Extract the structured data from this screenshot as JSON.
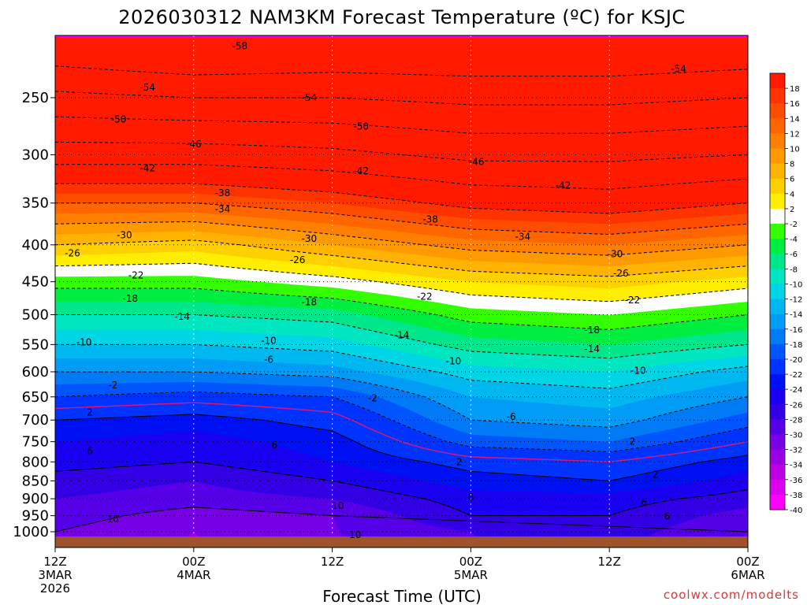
{
  "chart_data": {
    "type": "heatmap",
    "title": "2026030312 NAM3KM Forecast Temperature (ºC) for KSJC",
    "xlabel": "Forecast Time (UTC)",
    "ylabel": "",
    "credit": "coolwx.com/modelts",
    "x_ticks": [
      {
        "hours": 0,
        "lines": [
          "12Z",
          "3MAR",
          "2026"
        ]
      },
      {
        "hours": 12,
        "lines": [
          "00Z",
          "4MAR"
        ]
      },
      {
        "hours": 24,
        "lines": [
          "12Z"
        ]
      },
      {
        "hours": 36,
        "lines": [
          "00Z",
          "5MAR"
        ]
      },
      {
        "hours": 48,
        "lines": [
          "12Z"
        ]
      },
      {
        "hours": 60,
        "lines": [
          "00Z",
          "6MAR"
        ]
      }
    ],
    "xlim_hours": [
      0,
      60
    ],
    "y_pressure_ticks": [
      250,
      300,
      350,
      400,
      450,
      500,
      550,
      600,
      650,
      700,
      750,
      800,
      850,
      900,
      950,
      1000
    ],
    "ylim_hpa": [
      200,
      1020
    ],
    "colorbar": {
      "labels": [
        "18",
        "16",
        "14",
        "12",
        "10",
        "8",
        "6",
        "4",
        "2",
        "-2",
        "-4",
        "-6",
        "-8",
        "-10",
        "-12",
        "-14",
        "-16",
        "-18",
        "-20",
        "-22",
        "-24",
        "-26",
        "-28",
        "-30",
        "-32",
        "-34",
        "-36",
        "-38",
        "-40"
      ],
      "colors": [
        "#ff1a00",
        "#ff3300",
        "#ff4d00",
        "#ff6600",
        "#ff8000",
        "#ff9900",
        "#ffb300",
        "#ffd000",
        "#ffee00",
        "#ffffff",
        "#33ff00",
        "#00ee40",
        "#00e68a",
        "#00e6c0",
        "#00d5e6",
        "#00b8f0",
        "#009cf5",
        "#007af5",
        "#0055ff",
        "#0033ff",
        "#0010f5",
        "#1a00f0",
        "#3300e6",
        "#5500e6",
        "#7700e6",
        "#9900e6",
        "#bb00e6",
        "#dd00ee",
        "#ff00ff"
      ]
    },
    "profile_hours": [
      0,
      12,
      24,
      36,
      48,
      60
    ],
    "temperature_profiles_c": [
      {
        "hpa": 1000,
        "values": [
          10,
          12,
          10,
          8,
          7,
          10
        ]
      },
      {
        "hpa": 950,
        "values": [
          9,
          11,
          10,
          6,
          6,
          9
        ]
      },
      {
        "hpa": 900,
        "values": [
          8,
          9,
          8,
          5,
          5,
          7
        ]
      },
      {
        "hpa": 850,
        "values": [
          7,
          8,
          6,
          3,
          2,
          5
        ]
      },
      {
        "hpa": 800,
        "values": [
          5,
          6,
          4,
          1,
          0,
          3
        ]
      },
      {
        "hpa": 750,
        "values": [
          4,
          5,
          3,
          -3,
          -4,
          0
        ]
      },
      {
        "hpa": 700,
        "values": [
          2,
          3,
          1,
          -6,
          -7,
          -3
        ]
      },
      {
        "hpa": 650,
        "values": [
          -2,
          -1,
          -2,
          -8,
          -9,
          -6
        ]
      },
      {
        "hpa": 600,
        "values": [
          -6,
          -6,
          -7,
          -11,
          -12,
          -9
        ]
      },
      {
        "hpa": 550,
        "values": [
          -10,
          -10,
          -11,
          -15,
          -16,
          -14
        ]
      },
      {
        "hpa": 500,
        "values": [
          -14,
          -14,
          -15,
          -19,
          -20,
          -18
        ]
      },
      {
        "hpa": 450,
        "values": [
          -19,
          -19,
          -21,
          -24,
          -25,
          -23
        ]
      },
      {
        "hpa": 400,
        "values": [
          -26,
          -25,
          -28,
          -31,
          -32,
          -30
        ]
      },
      {
        "hpa": 350,
        "values": [
          -34,
          -34,
          -36,
          -39,
          -40,
          -38
        ]
      },
      {
        "hpa": 300,
        "values": [
          -44,
          -44,
          -45,
          -47,
          -47,
          -46
        ]
      },
      {
        "hpa": 250,
        "values": [
          -53,
          -54,
          -54,
          -55,
          -55,
          -54
        ]
      }
    ],
    "contour_labels": [
      {
        "text": "-58",
        "hours": 16,
        "hpa": 212
      },
      {
        "text": "-54",
        "hours": 8,
        "hpa": 242
      },
      {
        "text": "-54",
        "hours": 22,
        "hpa": 250
      },
      {
        "text": "-54",
        "hours": 54,
        "hpa": 228
      },
      {
        "text": "-50",
        "hours": 5.5,
        "hpa": 268
      },
      {
        "text": "-50",
        "hours": 26.5,
        "hpa": 274
      },
      {
        "text": "-46",
        "hours": 12,
        "hpa": 290
      },
      {
        "text": "-46",
        "hours": 36.5,
        "hpa": 307
      },
      {
        "text": "-42",
        "hours": 8,
        "hpa": 313
      },
      {
        "text": "-42",
        "hours": 26.5,
        "hpa": 316
      },
      {
        "text": "-42",
        "hours": 44,
        "hpa": 331
      },
      {
        "text": "-38",
        "hours": 14.5,
        "hpa": 339
      },
      {
        "text": "-38",
        "hours": 32.5,
        "hpa": 369
      },
      {
        "text": "-34",
        "hours": 14.5,
        "hpa": 357
      },
      {
        "text": "-34",
        "hours": 40.5,
        "hpa": 390
      },
      {
        "text": "-30",
        "hours": 6,
        "hpa": 388
      },
      {
        "text": "-30",
        "hours": 22,
        "hpa": 392
      },
      {
        "text": "-30",
        "hours": 48.5,
        "hpa": 412
      },
      {
        "text": "-26",
        "hours": 1.5,
        "hpa": 411
      },
      {
        "text": "-26",
        "hours": 21,
        "hpa": 420
      },
      {
        "text": "-26",
        "hours": 49,
        "hpa": 438
      },
      {
        "text": "-22",
        "hours": 7,
        "hpa": 441
      },
      {
        "text": "-22",
        "hours": 32,
        "hpa": 472
      },
      {
        "text": "-22",
        "hours": 50,
        "hpa": 477
      },
      {
        "text": "-18",
        "hours": 6.5,
        "hpa": 475
      },
      {
        "text": "-18",
        "hours": 22,
        "hpa": 480
      },
      {
        "text": "-18",
        "hours": 46.5,
        "hpa": 525
      },
      {
        "text": "-14",
        "hours": 11,
        "hpa": 503
      },
      {
        "text": "-14",
        "hours": 30,
        "hpa": 534
      },
      {
        "text": "-14",
        "hours": 46.5,
        "hpa": 558
      },
      {
        "text": "-10",
        "hours": 2.5,
        "hpa": 546
      },
      {
        "text": "-10",
        "hours": 18.5,
        "hpa": 543
      },
      {
        "text": "-10",
        "hours": 34.5,
        "hpa": 580
      },
      {
        "text": "-10",
        "hours": 50.5,
        "hpa": 598
      },
      {
        "text": "-6",
        "hours": 18.5,
        "hpa": 577
      },
      {
        "text": "-6",
        "hours": 39.5,
        "hpa": 693
      },
      {
        "text": "-2",
        "hours": 5,
        "hpa": 626
      },
      {
        "text": "-2",
        "hours": 27.5,
        "hpa": 653
      },
      {
        "text": "2",
        "hours": 3,
        "hpa": 683
      },
      {
        "text": "2",
        "hours": 35,
        "hpa": 800
      },
      {
        "text": "2",
        "hours": 50,
        "hpa": 750
      },
      {
        "text": "2",
        "hours": 52,
        "hpa": 833
      },
      {
        "text": "6",
        "hours": 3,
        "hpa": 773
      },
      {
        "text": "6",
        "hours": 19,
        "hpa": 758
      },
      {
        "text": "6",
        "hours": 36,
        "hpa": 895
      },
      {
        "text": "6",
        "hours": 51,
        "hpa": 910
      },
      {
        "text": "6",
        "hours": 53,
        "hpa": 952
      },
      {
        "text": "10",
        "hours": 5,
        "hpa": 960
      },
      {
        "text": "10",
        "hours": 24.5,
        "hpa": 920
      },
      {
        "text": "10",
        "hours": 26,
        "hpa": 1010
      }
    ]
  }
}
